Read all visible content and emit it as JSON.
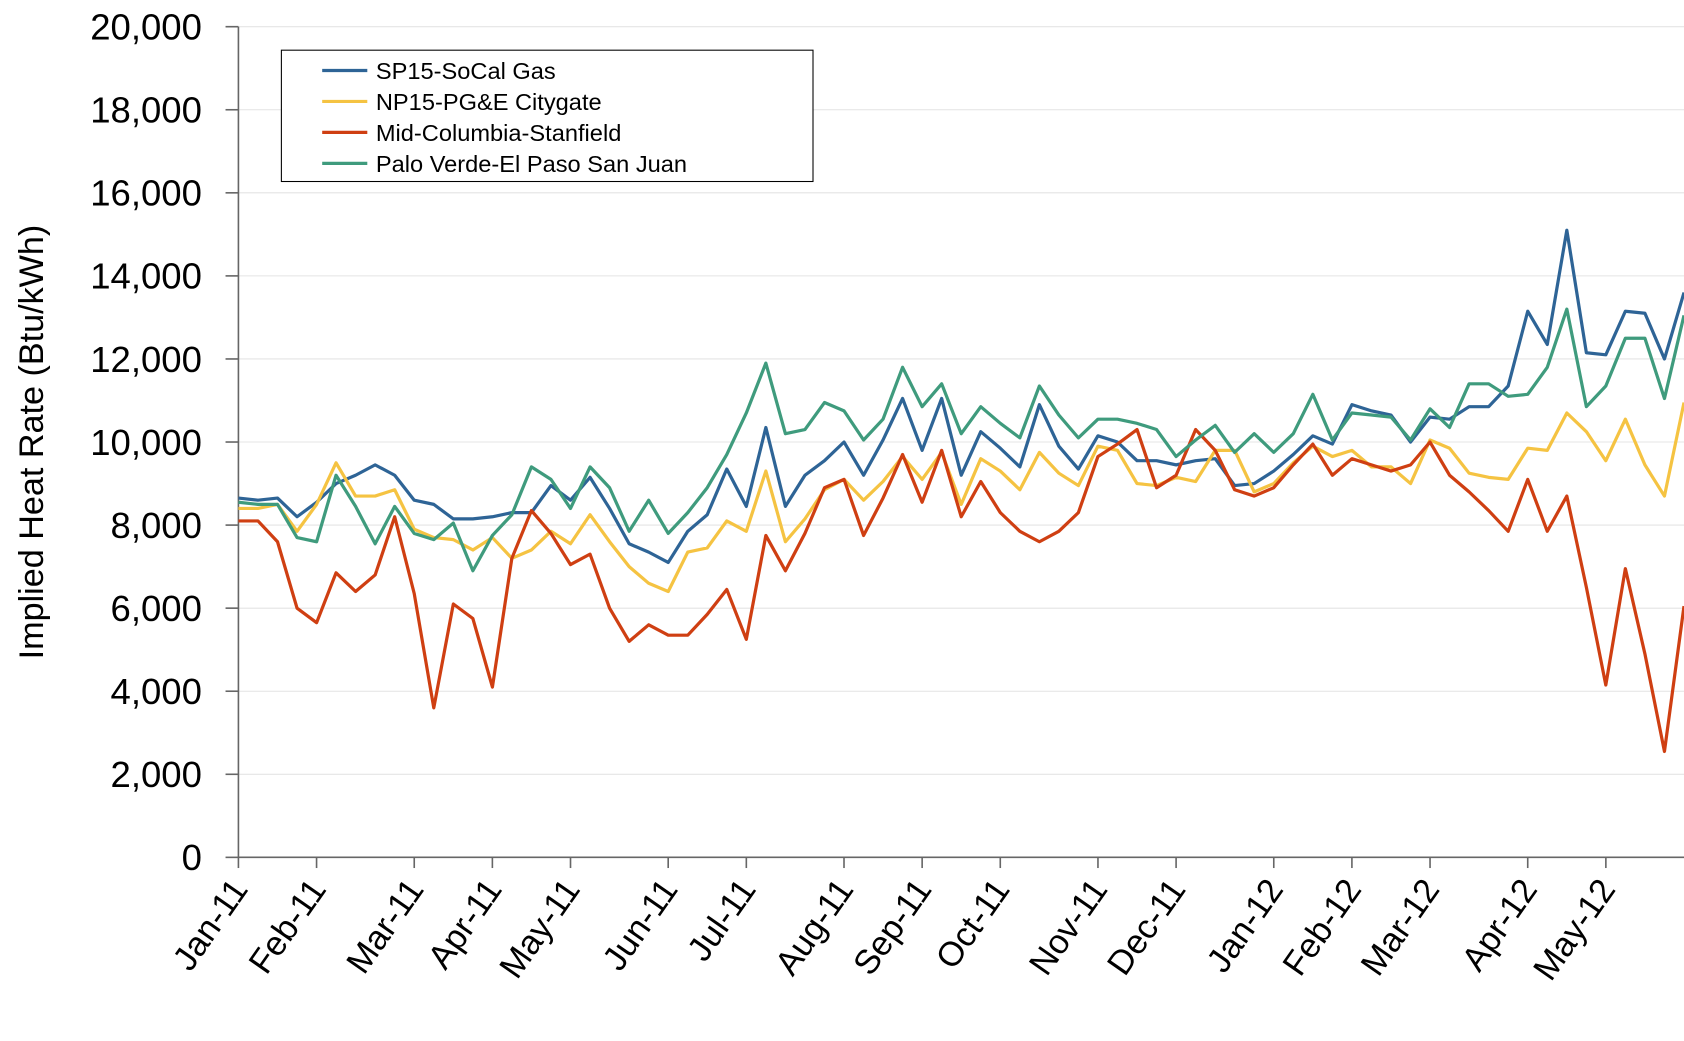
{
  "chart_data": {
    "type": "line",
    "y_axis_label": "Implied Heat Rate (Btu/kWh)",
    "categories": [
      "Jan-11",
      null,
      null,
      null,
      "Feb-11",
      null,
      null,
      null,
      null,
      "Mar-11",
      null,
      null,
      null,
      "Apr-11",
      null,
      null,
      null,
      "May-11",
      null,
      null,
      null,
      null,
      "Jun-11",
      null,
      null,
      null,
      "Jul-11",
      null,
      null,
      null,
      null,
      "Aug-11",
      null,
      null,
      null,
      "Sep-11",
      null,
      null,
      null,
      "Oct-11",
      null,
      null,
      null,
      null,
      "Nov-11",
      null,
      null,
      null,
      "Dec-11",
      null,
      null,
      null,
      null,
      "Jan-12",
      null,
      null,
      null,
      "Feb-12",
      null,
      null,
      null,
      "Mar-12",
      null,
      null,
      null,
      null,
      "Apr-12",
      null,
      null,
      null,
      "May-12",
      null,
      null,
      null,
      null
    ],
    "series": [
      {
        "name": "SP15-SoCal Gas",
        "color": "#2e6496",
        "values": [
          8650,
          8600,
          8650,
          8200,
          8550,
          9000,
          9200,
          9450,
          9200,
          8600,
          8500,
          8150,
          8150,
          8200,
          8300,
          8300,
          8950,
          8600,
          9150,
          8400,
          7550,
          7350,
          7100,
          7850,
          8250,
          9350,
          8450,
          10350,
          8450,
          9200,
          9550,
          10000,
          9200,
          10050,
          11050,
          9800,
          11050,
          9200,
          10250,
          9850,
          9400,
          10900,
          9900,
          9350,
          10150,
          10000,
          9550,
          9550,
          9450,
          9550,
          9600,
          8950,
          9000,
          9300,
          9700,
          10150,
          9950,
          10900,
          10750,
          10650,
          10000,
          10600,
          10550,
          10850,
          10850,
          11350,
          13150,
          12350,
          15100,
          12150,
          12100,
          13150,
          13100,
          12000,
          13600
        ]
      },
      {
        "name": "NP15-PG&E Citygate",
        "color": "#f5c342",
        "values": [
          8400,
          8400,
          8500,
          7850,
          8500,
          9500,
          8700,
          8700,
          8850,
          7900,
          7700,
          7650,
          7400,
          7700,
          7200,
          7400,
          7850,
          7550,
          8250,
          7600,
          7000,
          6600,
          6400,
          7350,
          7450,
          8100,
          7850,
          9300,
          7600,
          8150,
          8850,
          9100,
          8600,
          9050,
          9650,
          9100,
          9750,
          8500,
          9600,
          9300,
          8850,
          9750,
          9250,
          8950,
          9900,
          9800,
          9000,
          8950,
          9150,
          9050,
          9800,
          9800,
          8800,
          9000,
          9500,
          9900,
          9650,
          9800,
          9400,
          9400,
          9000,
          10050,
          9850,
          9250,
          9150,
          9100,
          9850,
          9800,
          10700,
          10250,
          9550,
          10550,
          9450,
          8700,
          10950
        ]
      },
      {
        "name": "Mid-Columbia-Stanfield",
        "color": "#cf3f12",
        "values": [
          8100,
          8100,
          7600,
          6000,
          5650,
          6850,
          6400,
          6800,
          8200,
          6350,
          3600,
          6100,
          5750,
          4100,
          7200,
          8350,
          7800,
          7050,
          7300,
          6000,
          5200,
          5600,
          5350,
          5350,
          5850,
          6450,
          5250,
          7750,
          6900,
          7800,
          8900,
          9100,
          7750,
          8650,
          9700,
          8550,
          9800,
          8200,
          9050,
          8300,
          7850,
          7600,
          7850,
          8300,
          9650,
          9950,
          10300,
          8900,
          9200,
          10300,
          9800,
          8850,
          8700,
          8900,
          9450,
          9950,
          9200,
          9600,
          9450,
          9300,
          9450,
          10000,
          9200,
          8800,
          8350,
          7850,
          9100,
          7850,
          8700,
          6500,
          4150,
          6950,
          4900,
          2550,
          6050
        ]
      },
      {
        "name": "Palo Verde-El Paso San Juan",
        "color": "#3f9b7d",
        "values": [
          8550,
          8500,
          8500,
          7700,
          7600,
          9200,
          8450,
          7550,
          8450,
          7800,
          7650,
          8050,
          6900,
          7750,
          8250,
          9400,
          9100,
          8400,
          9400,
          8900,
          7850,
          8600,
          7800,
          8300,
          8900,
          9700,
          10700,
          11900,
          10200,
          10300,
          10950,
          10750,
          10050,
          10550,
          11800,
          10850,
          11400,
          10200,
          10850,
          10450,
          10100,
          11350,
          10650,
          10100,
          10550,
          10550,
          10450,
          10300,
          9650,
          10050,
          10400,
          9750,
          10200,
          9750,
          10200,
          11150,
          10050,
          10700,
          10650,
          10600,
          10050,
          10800,
          10350,
          11400,
          11400,
          11100,
          11150,
          11800,
          13200,
          10850,
          11350,
          12500,
          12500,
          11050,
          13050
        ]
      }
    ],
    "ylim": [
      0,
      20000
    ],
    "yticks": [
      0,
      {
        "value": 2000,
        "label": "2,000"
      },
      {
        "value": 4000,
        "label": "4,000"
      },
      {
        "value": 6000,
        "label": "6,000"
      },
      {
        "value": 8000,
        "label": "8,000"
      },
      {
        "value": 10000,
        "label": "10,000"
      },
      {
        "value": 12000,
        "label": "12,000"
      },
      {
        "value": 14000,
        "label": "14,000"
      },
      {
        "value": 16000,
        "label": "16,000"
      },
      {
        "value": 18000,
        "label": "18,000"
      },
      {
        "value": 20000,
        "label": "20,000"
      }
    ],
    "grid": true,
    "legend": "top-left"
  }
}
